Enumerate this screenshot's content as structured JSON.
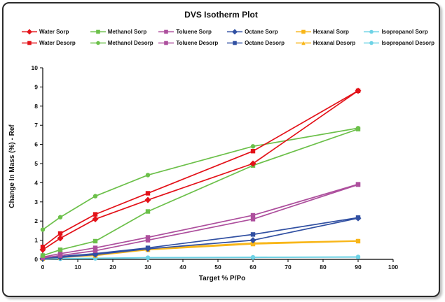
{
  "chart_data": {
    "type": "line",
    "title": "DVS Isotherm Plot",
    "xlabel": "Target % P/Po",
    "ylabel": "Change In Mass (%) - Ref",
    "xlim": [
      0,
      100
    ],
    "ylim": [
      0,
      10
    ],
    "xticks": [
      0,
      10,
      20,
      30,
      40,
      50,
      60,
      70,
      80,
      90,
      100
    ],
    "yticks": [
      0,
      1,
      2,
      3,
      4,
      5,
      6,
      7,
      8,
      9,
      10
    ],
    "grid": false,
    "legend_position": "top",
    "x": [
      0,
      5,
      15,
      30,
      60,
      90
    ],
    "series": [
      {
        "name": "Water Sorp",
        "color": "#e31219",
        "marker": "diamond",
        "values": [
          0.5,
          1.1,
          2.1,
          3.1,
          5.0,
          8.8
        ]
      },
      {
        "name": "Water Desorp",
        "color": "#e31219",
        "marker": "square",
        "values": [
          0.65,
          1.35,
          2.35,
          3.45,
          5.65,
          8.8
        ]
      },
      {
        "name": "Methanol Sorp",
        "color": "#6cc04a",
        "marker": "square",
        "values": [
          0.2,
          0.5,
          0.95,
          2.5,
          4.9,
          6.8
        ]
      },
      {
        "name": "Methanol Desorp",
        "color": "#6cc04a",
        "marker": "circle",
        "values": [
          1.55,
          2.2,
          3.3,
          4.4,
          5.9,
          6.85
        ]
      },
      {
        "name": "Toluene Sorp",
        "color": "#ad4f9d",
        "marker": "square",
        "values": [
          0.08,
          0.2,
          0.45,
          1.0,
          2.1,
          3.9
        ]
      },
      {
        "name": "Toluene Desorp",
        "color": "#ad4f9d",
        "marker": "square",
        "values": [
          0.12,
          0.3,
          0.6,
          1.15,
          2.3,
          3.92
        ]
      },
      {
        "name": "Octane Sorp",
        "color": "#3150a2",
        "marker": "diamond",
        "values": [
          0.05,
          0.1,
          0.25,
          0.55,
          1.0,
          2.15
        ]
      },
      {
        "name": "Octane Desorp",
        "color": "#3150a2",
        "marker": "square",
        "values": [
          0.08,
          0.15,
          0.3,
          0.6,
          1.3,
          2.18
        ]
      },
      {
        "name": "Hexanal Sorp",
        "color": "#f8b619",
        "marker": "square",
        "values": [
          0.04,
          0.1,
          0.2,
          0.5,
          0.8,
          0.95
        ]
      },
      {
        "name": "Hexanal Desorp",
        "color": "#f8b619",
        "marker": "triangle",
        "values": [
          0.06,
          0.13,
          0.27,
          0.55,
          0.85,
          0.97
        ]
      },
      {
        "name": "Isopropanol Sorp",
        "color": "#6ed3e6",
        "marker": "circle",
        "values": [
          0.02,
          0.03,
          0.05,
          0.08,
          0.1,
          0.12
        ]
      },
      {
        "name": "Isopropanol Desorp",
        "color": "#6ed3e6",
        "marker": "circle",
        "values": [
          0.02,
          0.04,
          0.06,
          0.09,
          0.11,
          0.13
        ]
      }
    ]
  }
}
